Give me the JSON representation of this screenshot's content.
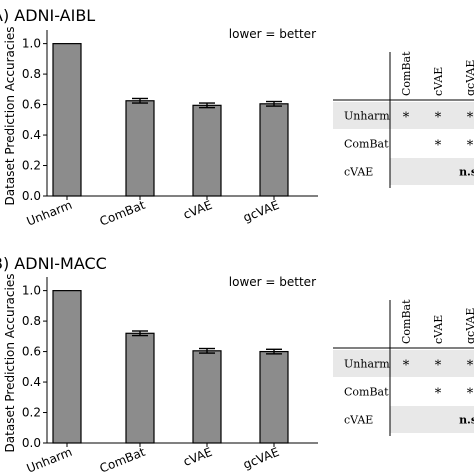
{
  "chart_data": [
    {
      "type": "bar",
      "title": "A) ADNI-AIBL",
      "annotation": "lower = better",
      "xlabel": "",
      "ylabel": "Dataset Prediction Accuracies",
      "categories": [
        "Unharm",
        "ComBat",
        "cVAE",
        "gcVAE"
      ],
      "values": [
        1.0,
        0.625,
        0.595,
        0.605
      ],
      "errors": [
        0.0,
        0.015,
        0.015,
        0.015
      ],
      "ylim": [
        0,
        1.05
      ],
      "yticks": [
        "0.0",
        "0.2",
        "0.4",
        "0.6",
        "0.8",
        "1.0"
      ],
      "bar_color": "#8c8c8c",
      "grid": false,
      "significance_table": {
        "columns": [
          "ComBat",
          "cVAE",
          "gcVAE"
        ],
        "rows": [
          {
            "label": "Unharm",
            "cells": [
              "*",
              "*",
              "*"
            ]
          },
          {
            "label": "ComBat",
            "cells": [
              "",
              "*",
              "*"
            ]
          },
          {
            "label": "cVAE",
            "cells": [
              "",
              "",
              "n.s."
            ]
          }
        ]
      }
    },
    {
      "type": "bar",
      "title": "B) ADNI-MACC",
      "annotation": "lower = better",
      "xlabel": "",
      "ylabel": "Dataset Prediction Accuracies",
      "categories": [
        "Unharm",
        "ComBat",
        "cVAE",
        "gcVAE"
      ],
      "values": [
        1.0,
        0.72,
        0.605,
        0.6
      ],
      "errors": [
        0.0,
        0.015,
        0.015,
        0.015
      ],
      "ylim": [
        0,
        1.05
      ],
      "yticks": [
        "0.0",
        "0.2",
        "0.4",
        "0.6",
        "0.8",
        "1.0"
      ],
      "bar_color": "#8c8c8c",
      "grid": false,
      "significance_table": {
        "columns": [
          "ComBat",
          "cVAE",
          "gcVAE"
        ],
        "rows": [
          {
            "label": "Unharm",
            "cells": [
              "*",
              "*",
              "*"
            ]
          },
          {
            "label": "ComBat",
            "cells": [
              "",
              "*",
              "*"
            ]
          },
          {
            "label": "cVAE",
            "cells": [
              "",
              "",
              "n.s."
            ]
          }
        ]
      }
    }
  ],
  "colors": {
    "bar_fill": "#8c8c8c",
    "table_shade": "#e8e8e8",
    "axis": "#000000"
  }
}
